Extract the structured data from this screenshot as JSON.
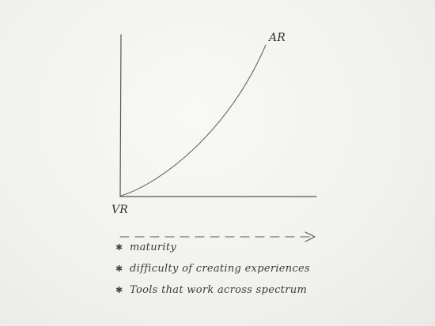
{
  "diagram": {
    "curve_end_label": "AR",
    "origin_label": "VR",
    "bullets": [
      {
        "icon": "asterisk-icon",
        "text": "maturity"
      },
      {
        "icon": "asterisk-icon",
        "text": "difficulty of creating experiences"
      },
      {
        "icon": "asterisk-icon",
        "text": "Tools that work across spectrum"
      }
    ]
  },
  "colors": {
    "paper": "#f3f3f1",
    "ink": "#555555"
  }
}
